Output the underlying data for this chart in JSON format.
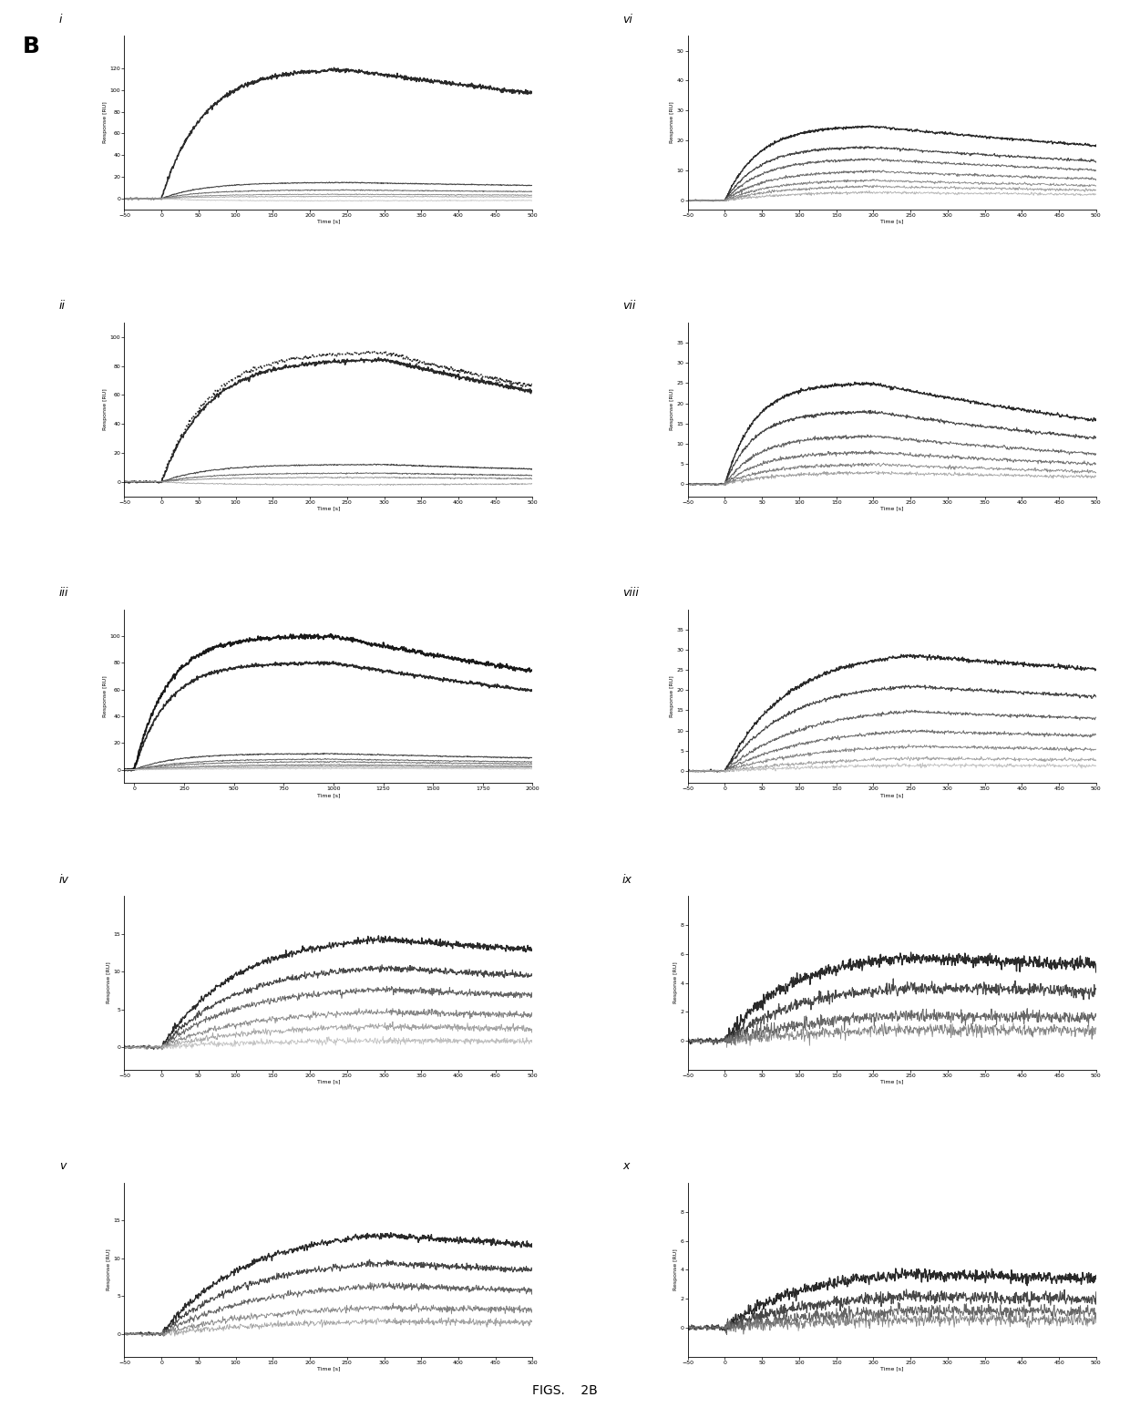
{
  "figure_label": "B",
  "figure_caption": "FIGS.    2B",
  "background_color": "#ffffff",
  "panels": [
    {
      "label": "i",
      "ylabel": "Response [RU]",
      "xlabel": "Time [s]",
      "ylim": [
        -10,
        150
      ],
      "xlim": [
        -50,
        500
      ],
      "ytick_max": 120,
      "ytick_step": 20,
      "association_end": 250,
      "x_end": 500,
      "curves": [
        {
          "max_resp": 120,
          "ka": 0.018,
          "kd": 0.0008,
          "color": "#111111",
          "lw": 1.2,
          "dotted": false
        },
        {
          "max_resp": 15,
          "ka": 0.018,
          "kd": 0.0008,
          "color": "#333333",
          "lw": 0.8,
          "dotted": false
        },
        {
          "max_resp": 8,
          "ka": 0.018,
          "kd": 0.0008,
          "color": "#555555",
          "lw": 0.7,
          "dotted": false
        },
        {
          "max_resp": 4,
          "ka": 0.018,
          "kd": 0.0008,
          "color": "#777777",
          "lw": 0.6,
          "dotted": false
        },
        {
          "max_resp": 2,
          "ka": 0.018,
          "kd": 0.0008,
          "color": "#999999",
          "lw": 0.6,
          "dotted": false
        },
        {
          "max_resp": -2,
          "ka": 0.018,
          "kd": 0.0008,
          "color": "#bbbbbb",
          "lw": 0.6,
          "dotted": false
        }
      ]
    },
    {
      "label": "ii",
      "ylabel": "Response [RU]",
      "xlabel": "Time [s]",
      "ylim": [
        -10,
        110
      ],
      "xlim": [
        -50,
        500
      ],
      "ytick_max": 100,
      "ytick_step": 20,
      "association_end": 300,
      "x_end": 500,
      "curves": [
        {
          "max_resp": 90,
          "ka": 0.016,
          "kd": 0.0015,
          "color": "#111111",
          "lw": 1.2,
          "dotted": true
        },
        {
          "max_resp": 85,
          "ka": 0.016,
          "kd": 0.0015,
          "color": "#111111",
          "lw": 1.2,
          "dotted": false
        },
        {
          "max_resp": 12,
          "ka": 0.016,
          "kd": 0.0015,
          "color": "#333333",
          "lw": 0.8,
          "dotted": false
        },
        {
          "max_resp": 6,
          "ka": 0.016,
          "kd": 0.0015,
          "color": "#555555",
          "lw": 0.7,
          "dotted": false
        },
        {
          "max_resp": 3,
          "ka": 0.016,
          "kd": 0.0015,
          "color": "#777777",
          "lw": 0.6,
          "dotted": false
        },
        {
          "max_resp": -2,
          "ka": 0.016,
          "kd": 0.0015,
          "color": "#999999",
          "lw": 0.6,
          "dotted": false
        }
      ]
    },
    {
      "label": "iii",
      "ylabel": "Response [RU]",
      "xlabel": "Time [s]",
      "ylim": [
        -10,
        120
      ],
      "xlim": [
        -50,
        2000
      ],
      "ytick_max": 100,
      "ytick_step": 20,
      "association_end": 1000,
      "x_end": 2000,
      "curves": [
        {
          "max_resp": 100,
          "ka": 0.006,
          "kd": 0.0003,
          "color": "#000000",
          "lw": 1.4,
          "dotted": false
        },
        {
          "max_resp": 80,
          "ka": 0.006,
          "kd": 0.0003,
          "color": "#111111",
          "lw": 1.2,
          "dotted": false
        },
        {
          "max_resp": 12,
          "ka": 0.005,
          "kd": 0.0003,
          "color": "#333333",
          "lw": 0.8,
          "dotted": false
        },
        {
          "max_resp": 8,
          "ka": 0.004,
          "kd": 0.0003,
          "color": "#555555",
          "lw": 0.7,
          "dotted": false
        },
        {
          "max_resp": 6,
          "ka": 0.004,
          "kd": 0.0003,
          "color": "#666666",
          "lw": 0.7,
          "dotted": false
        },
        {
          "max_resp": 4,
          "ka": 0.003,
          "kd": 0.0003,
          "color": "#777777",
          "lw": 0.6,
          "dotted": false
        },
        {
          "max_resp": 3,
          "ka": 0.003,
          "kd": 0.0003,
          "color": "#888888",
          "lw": 0.6,
          "dotted": false
        },
        {
          "max_resp": 2,
          "ka": 0.002,
          "kd": 0.0003,
          "color": "#aaaaaa",
          "lw": 0.6,
          "dotted": false
        },
        {
          "max_resp": 1,
          "ka": 0.002,
          "kd": 0.0003,
          "color": "#cccccc",
          "lw": 0.6,
          "dotted": false
        }
      ]
    },
    {
      "label": "iv",
      "ylabel": "Response [RU]",
      "xlabel": "Time [s]",
      "ylim": [
        -3,
        20
      ],
      "xlim": [
        -50,
        500
      ],
      "ytick_max": 15,
      "ytick_step": 5,
      "association_end": 300,
      "x_end": 500,
      "curves": [
        {
          "max_resp": 15,
          "ka": 0.01,
          "kd": 0.0005,
          "color": "#111111",
          "lw": 1.0,
          "dotted": false
        },
        {
          "max_resp": 11,
          "ka": 0.01,
          "kd": 0.0005,
          "color": "#333333",
          "lw": 0.8,
          "dotted": false
        },
        {
          "max_resp": 8,
          "ka": 0.01,
          "kd": 0.0005,
          "color": "#555555",
          "lw": 0.7,
          "dotted": false
        },
        {
          "max_resp": 5,
          "ka": 0.009,
          "kd": 0.0005,
          "color": "#777777",
          "lw": 0.6,
          "dotted": false
        },
        {
          "max_resp": 3,
          "ka": 0.008,
          "kd": 0.0005,
          "color": "#999999",
          "lw": 0.6,
          "dotted": false
        },
        {
          "max_resp": 1,
          "ka": 0.007,
          "kd": 0.0005,
          "color": "#bbbbbb",
          "lw": 0.6,
          "dotted": false
        }
      ]
    },
    {
      "label": "v",
      "ylabel": "Response [RU]",
      "xlabel": "Time [s]",
      "ylim": [
        -3,
        20
      ],
      "xlim": [
        -50,
        500
      ],
      "ytick_max": 15,
      "ytick_step": 5,
      "association_end": 300,
      "x_end": 500,
      "curves": [
        {
          "max_resp": 14,
          "ka": 0.009,
          "kd": 0.0005,
          "color": "#111111",
          "lw": 1.0,
          "dotted": false
        },
        {
          "max_resp": 10,
          "ka": 0.009,
          "kd": 0.0005,
          "color": "#333333",
          "lw": 0.8,
          "dotted": false
        },
        {
          "max_resp": 7,
          "ka": 0.008,
          "kd": 0.0005,
          "color": "#555555",
          "lw": 0.7,
          "dotted": false
        },
        {
          "max_resp": 4,
          "ka": 0.007,
          "kd": 0.0005,
          "color": "#777777",
          "lw": 0.6,
          "dotted": false
        },
        {
          "max_resp": 2,
          "ka": 0.006,
          "kd": 0.0005,
          "color": "#999999",
          "lw": 0.6,
          "dotted": false
        }
      ]
    },
    {
      "label": "vi",
      "ylabel": "Response [RU]",
      "xlabel": "Time [s]",
      "ylim": [
        -3,
        55
      ],
      "xlim": [
        -50,
        500
      ],
      "ytick_max": 50,
      "ytick_step": 10,
      "association_end": 200,
      "x_end": 500,
      "curves": [
        {
          "max_resp": 25,
          "ka": 0.022,
          "kd": 0.001,
          "color": "#111111",
          "lw": 1.0,
          "dotted": false
        },
        {
          "max_resp": 18,
          "ka": 0.022,
          "kd": 0.001,
          "color": "#333333",
          "lw": 0.8,
          "dotted": false
        },
        {
          "max_resp": 14,
          "ka": 0.02,
          "kd": 0.001,
          "color": "#555555",
          "lw": 0.7,
          "dotted": false
        },
        {
          "max_resp": 10,
          "ka": 0.018,
          "kd": 0.001,
          "color": "#666666",
          "lw": 0.7,
          "dotted": false
        },
        {
          "max_resp": 7,
          "ka": 0.016,
          "kd": 0.001,
          "color": "#777777",
          "lw": 0.6,
          "dotted": false
        },
        {
          "max_resp": 5,
          "ka": 0.014,
          "kd": 0.001,
          "color": "#888888",
          "lw": 0.6,
          "dotted": false
        },
        {
          "max_resp": 3,
          "ka": 0.012,
          "kd": 0.001,
          "color": "#aaaaaa",
          "lw": 0.6,
          "dotted": false
        }
      ]
    },
    {
      "label": "vii",
      "ylabel": "Response [RU]",
      "xlabel": "Time [s]",
      "ylim": [
        -3,
        40
      ],
      "xlim": [
        -50,
        500
      ],
      "ytick_max": 35,
      "ytick_step": 5,
      "association_end": 200,
      "x_end": 500,
      "curves": [
        {
          "max_resp": 25,
          "ka": 0.025,
          "kd": 0.0015,
          "color": "#111111",
          "lw": 1.0,
          "dotted": false
        },
        {
          "max_resp": 18,
          "ka": 0.025,
          "kd": 0.0015,
          "color": "#333333",
          "lw": 0.8,
          "dotted": false
        },
        {
          "max_resp": 12,
          "ka": 0.022,
          "kd": 0.0015,
          "color": "#555555",
          "lw": 0.7,
          "dotted": false
        },
        {
          "max_resp": 8,
          "ka": 0.02,
          "kd": 0.0015,
          "color": "#666666",
          "lw": 0.7,
          "dotted": false
        },
        {
          "max_resp": 5,
          "ka": 0.018,
          "kd": 0.0015,
          "color": "#777777",
          "lw": 0.6,
          "dotted": false
        },
        {
          "max_resp": 3,
          "ka": 0.015,
          "kd": 0.0015,
          "color": "#999999",
          "lw": 0.6,
          "dotted": false
        }
      ]
    },
    {
      "label": "viii",
      "ylabel": "Response [RU]",
      "xlabel": "Time [s]",
      "ylim": [
        -3,
        40
      ],
      "xlim": [
        -50,
        500
      ],
      "ytick_max": 35,
      "ytick_step": 5,
      "association_end": 250,
      "x_end": 500,
      "curves": [
        {
          "max_resp": 30,
          "ka": 0.012,
          "kd": 0.0005,
          "color": "#111111",
          "lw": 1.0,
          "dotted": false
        },
        {
          "max_resp": 22,
          "ka": 0.012,
          "kd": 0.0005,
          "color": "#333333",
          "lw": 0.8,
          "dotted": false
        },
        {
          "max_resp": 16,
          "ka": 0.01,
          "kd": 0.0005,
          "color": "#555555",
          "lw": 0.7,
          "dotted": false
        },
        {
          "max_resp": 11,
          "ka": 0.009,
          "kd": 0.0005,
          "color": "#666666",
          "lw": 0.7,
          "dotted": false
        },
        {
          "max_resp": 7,
          "ka": 0.008,
          "kd": 0.0005,
          "color": "#777777",
          "lw": 0.6,
          "dotted": false
        },
        {
          "max_resp": 4,
          "ka": 0.006,
          "kd": 0.0005,
          "color": "#999999",
          "lw": 0.6,
          "dotted": false
        },
        {
          "max_resp": 2,
          "ka": 0.005,
          "kd": 0.0005,
          "color": "#bbbbbb",
          "lw": 0.6,
          "dotted": false
        }
      ]
    },
    {
      "label": "ix",
      "ylabel": "Response [RU]",
      "xlabel": "Time [s]",
      "ylim": [
        -2,
        10
      ],
      "xlim": [
        -50,
        500
      ],
      "ytick_max": 8,
      "ytick_step": 2,
      "association_end": 250,
      "x_end": 500,
      "curves": [
        {
          "max_resp": 6,
          "ka": 0.012,
          "kd": 0.0003,
          "color": "#111111",
          "lw": 1.0,
          "dotted": false
        },
        {
          "max_resp": 4,
          "ka": 0.01,
          "kd": 0.0003,
          "color": "#333333",
          "lw": 0.8,
          "dotted": false
        },
        {
          "max_resp": 2,
          "ka": 0.008,
          "kd": 0.0003,
          "color": "#555555",
          "lw": 0.7,
          "dotted": false
        },
        {
          "max_resp": 1,
          "ka": 0.006,
          "kd": 0.0003,
          "color": "#777777",
          "lw": 0.6,
          "dotted": false
        }
      ]
    },
    {
      "label": "x",
      "ylabel": "Response [RU]",
      "xlabel": "Time [s]",
      "ylim": [
        -2,
        10
      ],
      "xlim": [
        -50,
        500
      ],
      "ytick_max": 8,
      "ytick_step": 2,
      "association_end": 250,
      "x_end": 500,
      "curves": [
        {
          "max_resp": 4,
          "ka": 0.01,
          "kd": 0.0003,
          "color": "#111111",
          "lw": 1.0,
          "dotted": false
        },
        {
          "max_resp": 2.5,
          "ka": 0.008,
          "kd": 0.0003,
          "color": "#333333",
          "lw": 0.8,
          "dotted": false
        },
        {
          "max_resp": 1.5,
          "ka": 0.006,
          "kd": 0.0003,
          "color": "#555555",
          "lw": 0.7,
          "dotted": false
        },
        {
          "max_resp": 0.8,
          "ka": 0.005,
          "kd": 0.0003,
          "color": "#777777",
          "lw": 0.6,
          "dotted": false
        }
      ]
    }
  ]
}
